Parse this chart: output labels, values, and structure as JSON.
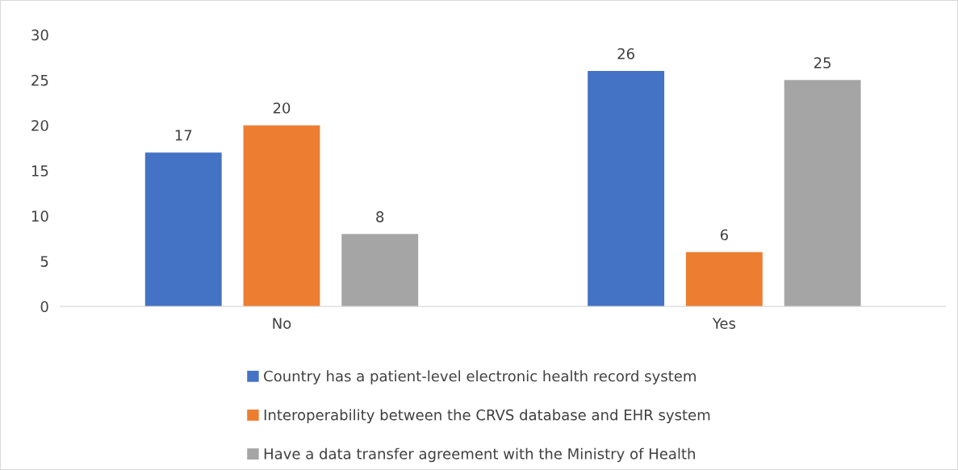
{
  "chart_data": {
    "type": "bar",
    "categories": [
      "No",
      "Yes"
    ],
    "series": [
      {
        "name": "Country has a patient-level electronic health record system",
        "color": "#4472c4",
        "values": [
          17,
          26
        ]
      },
      {
        "name": "Interoperability between the CRVS database and EHR system",
        "color": "#ed7d31",
        "values": [
          20,
          6
        ]
      },
      {
        "name": "Have a data transfer agreement with the Ministry of Health",
        "color": "#a5a5a5",
        "values": [
          8,
          25
        ]
      }
    ],
    "ylim": [
      0,
      30
    ],
    "yticks": [
      0,
      5,
      10,
      15,
      20,
      25,
      30
    ],
    "grid": false,
    "legend": "bottom",
    "data_labels": true
  }
}
